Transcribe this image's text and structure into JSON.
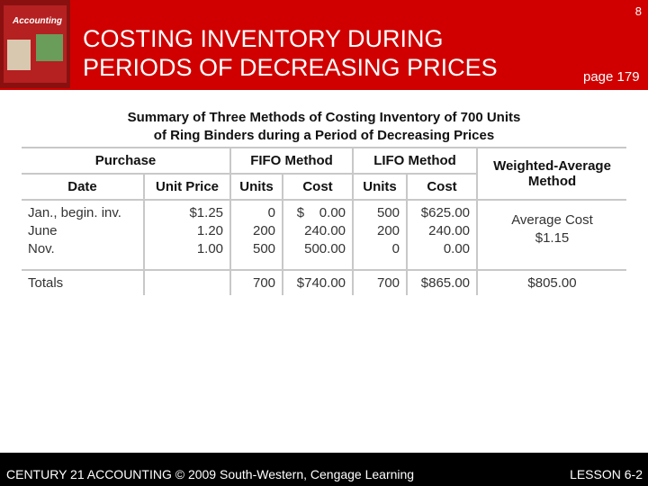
{
  "header": {
    "slide_number": "8",
    "title": [
      "COSTING INVENTORY DURING",
      "PERIODS OF DECREASING PRICES"
    ],
    "page": "page 179",
    "cover_title": "Accounting"
  },
  "table": {
    "title": [
      "Summary of Three Methods of Costing Inventory of 700 Units",
      "of Ring Binders during a Period of Decreasing Prices"
    ],
    "group_headers": [
      "Purchase",
      "FIFO Method",
      "LIFO Method",
      "Weighted-Average Method"
    ],
    "column_headers": [
      "Date",
      "Unit Price",
      "Units",
      "Cost",
      "Units",
      "Cost"
    ],
    "rows": [
      [
        "Jan., begin. inv.",
        "$1.25",
        "0",
        "$    0.00",
        "500",
        "$625.00"
      ],
      [
        "June",
        "1.20",
        "200",
        "240.00",
        "200",
        "240.00"
      ],
      [
        "Nov.",
        "1.00",
        "500",
        "500.00",
        "0",
        "0.00"
      ]
    ],
    "weighted_average": [
      "Average Cost",
      "$1.15"
    ],
    "totals": [
      "Totals",
      "700",
      "$740.00",
      "700",
      "$865.00",
      "$805.00"
    ]
  },
  "footer": {
    "left": "CENTURY 21 ACCOUNTING © 2009 South-Western, Cengage Learning",
    "right": "LESSON 6-2"
  }
}
